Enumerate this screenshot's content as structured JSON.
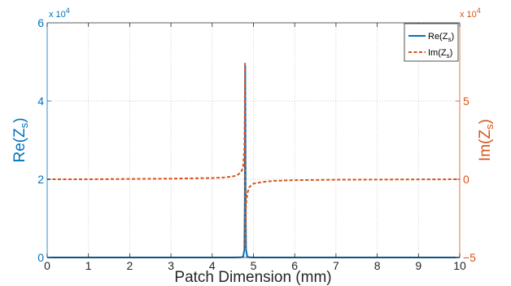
{
  "chart_data": {
    "type": "line",
    "xlabel": "Patch Dimension (mm)",
    "ylabel_left": {
      "base": "Re(Z",
      "sub": "s",
      "close": ")"
    },
    "ylabel_right": {
      "base": "Im(Z",
      "sub": "s",
      "close": ")"
    },
    "xlim": [
      0,
      10
    ],
    "ylim_left": [
      0,
      6
    ],
    "ylim_right": [
      -5,
      10
    ],
    "x_ticks": [
      "0",
      "1",
      "2",
      "3",
      "4",
      "5",
      "6",
      "7",
      "8",
      "9",
      "10"
    ],
    "y_ticks_left": [
      "0",
      "2",
      "4",
      "6"
    ],
    "y_ticks_right": [
      "−5",
      "0",
      "5"
    ],
    "exponent_left": {
      "base": "x 10",
      "power": "4"
    },
    "exponent_right": {
      "base": "x 10",
      "power": "4"
    },
    "grid": true,
    "legend_placement": "top-right",
    "colors": {
      "left_axis": "#0072BD",
      "right_axis": "#D95319"
    },
    "series": [
      {
        "name": {
          "base": "Re(Z",
          "sub": "s",
          "close": ")"
        },
        "axis": "left",
        "style": "solid",
        "color": "#0072BD",
        "x": [
          0,
          1,
          2,
          3,
          4,
          4.5,
          4.7,
          4.75,
          4.78,
          4.79,
          4.795,
          4.8,
          4.805,
          4.81,
          4.82,
          4.85,
          4.9,
          5,
          6,
          7,
          8,
          9,
          10
        ],
        "y": [
          0,
          0,
          0,
          0,
          0,
          0,
          0.005,
          0.02,
          0.2,
          1.5,
          3.5,
          4.9,
          3.5,
          1.5,
          0.2,
          0.02,
          0.005,
          0,
          0,
          0,
          0,
          0,
          0
        ]
      },
      {
        "name": {
          "base": "Im(Z",
          "sub": "s",
          "close": ")"
        },
        "axis": "right",
        "style": "dashed",
        "color": "#D95319",
        "x": [
          0,
          1,
          2,
          3,
          4,
          4.3,
          4.5,
          4.6,
          4.7,
          4.75,
          4.78,
          4.79,
          4.795,
          4.8,
          4.805,
          4.81,
          4.82,
          4.85,
          4.9,
          5,
          5.2,
          5.5,
          6,
          7,
          8,
          9,
          10
        ],
        "y": [
          0,
          0,
          0.02,
          0.04,
          0.08,
          0.12,
          0.18,
          0.25,
          0.45,
          0.8,
          2,
          4.5,
          7.5,
          0,
          -4.5,
          -3,
          -1.6,
          -0.9,
          -0.5,
          -0.28,
          -0.18,
          -0.1,
          -0.06,
          -0.03,
          -0.02,
          -0.01,
          0
        ]
      }
    ]
  }
}
